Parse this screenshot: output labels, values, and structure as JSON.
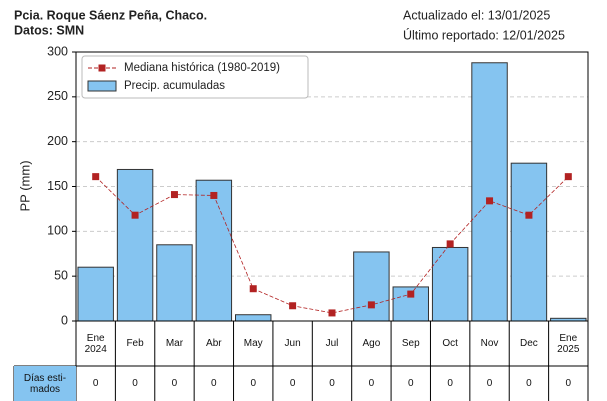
{
  "header": {
    "left": [
      "Pcia. Roque Sáenz Peña, Chaco.",
      "Datos: SMN"
    ],
    "right": [
      "Actualizado el: 13/01/2025",
      "Último reportado: 12/01/2025"
    ]
  },
  "chart_data": {
    "type": "bar",
    "ylabel": "PP (mm)",
    "categories": [
      "Ene\n2024",
      "Feb",
      "Mar",
      "Abr",
      "May",
      "Jun",
      "Jul",
      "Ago",
      "Sep",
      "Oct",
      "Nov",
      "Dec",
      "Ene\n2025"
    ],
    "series": [
      {
        "name": "Mediana histórica (1980-2019)",
        "type": "line",
        "color": "#b22222",
        "values": [
          161,
          118,
          141,
          140,
          36,
          17,
          9,
          18,
          30,
          86,
          134,
          118,
          161
        ]
      },
      {
        "name": "Precip. acumuladas",
        "type": "bar",
        "color": "#85c4f0",
        "values": [
          60,
          169,
          85,
          157,
          7,
          0,
          0,
          77,
          38,
          82,
          288,
          176,
          3
        ]
      }
    ],
    "ylim": [
      0,
      300
    ],
    "yticks": [
      0,
      50,
      100,
      150,
      200,
      250,
      300
    ],
    "grid": true,
    "legend": "upper left"
  },
  "table": {
    "row_label": "Días esti-\nmados",
    "values": [
      0,
      0,
      0,
      0,
      0,
      0,
      0,
      0,
      0,
      0,
      0,
      0,
      0
    ]
  }
}
